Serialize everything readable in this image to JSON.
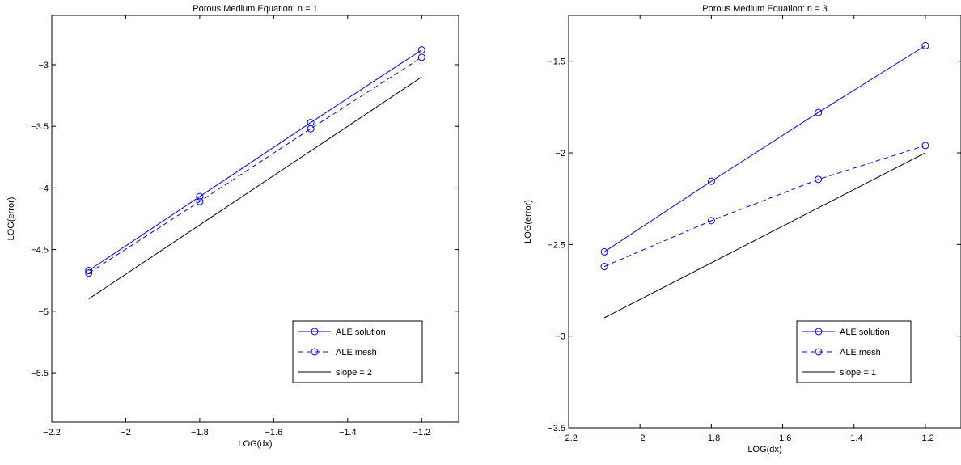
{
  "chart_data": [
    {
      "type": "line",
      "title": "Porous Medium Equation: n = 1",
      "xlabel": "LOG(dx)",
      "ylabel": "LOG(error)",
      "xlim": [
        -2.2,
        -1.1
      ],
      "ylim": [
        -5.9,
        -2.6
      ],
      "xticks": [
        -2.2,
        -2,
        -1.8,
        -1.6,
        -1.4,
        -1.2
      ],
      "xtick_labels": [
        "−2.2",
        "−2",
        "−1.8",
        "−1.6",
        "−1.4",
        "−1.2"
      ],
      "yticks": [
        -5.5,
        -5,
        -4.5,
        -4,
        -3.5,
        -3
      ],
      "ytick_labels": [
        "−5.5",
        "−5",
        "−4.5",
        "−4",
        "−3.5",
        "−3"
      ],
      "grid": false,
      "legend_position": "bottom-right",
      "series": [
        {
          "name": "ALE solution",
          "style": "solid",
          "marker": "circle",
          "color": "#0000ff",
          "x": [
            -2.1,
            -1.8,
            -1.5,
            -1.2
          ],
          "y": [
            -4.67,
            -4.07,
            -3.47,
            -2.88
          ]
        },
        {
          "name": "ALE mesh",
          "style": "dashed",
          "marker": "circle",
          "color": "#0000ff",
          "x": [
            -2.1,
            -1.8,
            -1.5,
            -1.2
          ],
          "y": [
            -4.69,
            -4.11,
            -3.52,
            -2.94
          ]
        },
        {
          "name": "slope = 2",
          "style": "solid",
          "marker": "none",
          "color": "#000000",
          "x": [
            -2.1,
            -1.2
          ],
          "y": [
            -4.9,
            -3.1
          ]
        }
      ]
    },
    {
      "type": "line",
      "title": "Porous Medium Equation: n = 3",
      "xlabel": "LOG(dx)",
      "ylabel": "LOG(error)",
      "xlim": [
        -2.2,
        -1.1
      ],
      "ylim": [
        -3.5,
        -1.25
      ],
      "xticks": [
        -2.2,
        -2,
        -1.8,
        -1.6,
        -1.4,
        -1.2
      ],
      "xtick_labels": [
        "−2.2",
        "−2",
        "−1.8",
        "−1.6",
        "−1.4",
        "−1.2"
      ],
      "yticks": [
        -3.5,
        -3,
        -2.5,
        -2,
        -1.5
      ],
      "ytick_labels": [
        "−3.5",
        "−3",
        "−2.5",
        "−2",
        "−1.5"
      ],
      "grid": false,
      "legend_position": "bottom-right",
      "series": [
        {
          "name": "ALE solution",
          "style": "solid",
          "marker": "circle",
          "color": "#0000ff",
          "x": [
            -2.1,
            -1.8,
            -1.5,
            -1.2
          ],
          "y": [
            -2.54,
            -2.155,
            -1.78,
            -1.415
          ]
        },
        {
          "name": "ALE mesh",
          "style": "dashed",
          "marker": "circle",
          "color": "#0000ff",
          "x": [
            -2.1,
            -1.8,
            -1.5,
            -1.2
          ],
          "y": [
            -2.62,
            -2.37,
            -2.145,
            -1.96
          ]
        },
        {
          "name": "slope = 1",
          "style": "solid",
          "marker": "none",
          "color": "#000000",
          "x": [
            -2.1,
            -1.2
          ],
          "y": [
            -2.9,
            -2.0
          ]
        }
      ]
    }
  ]
}
